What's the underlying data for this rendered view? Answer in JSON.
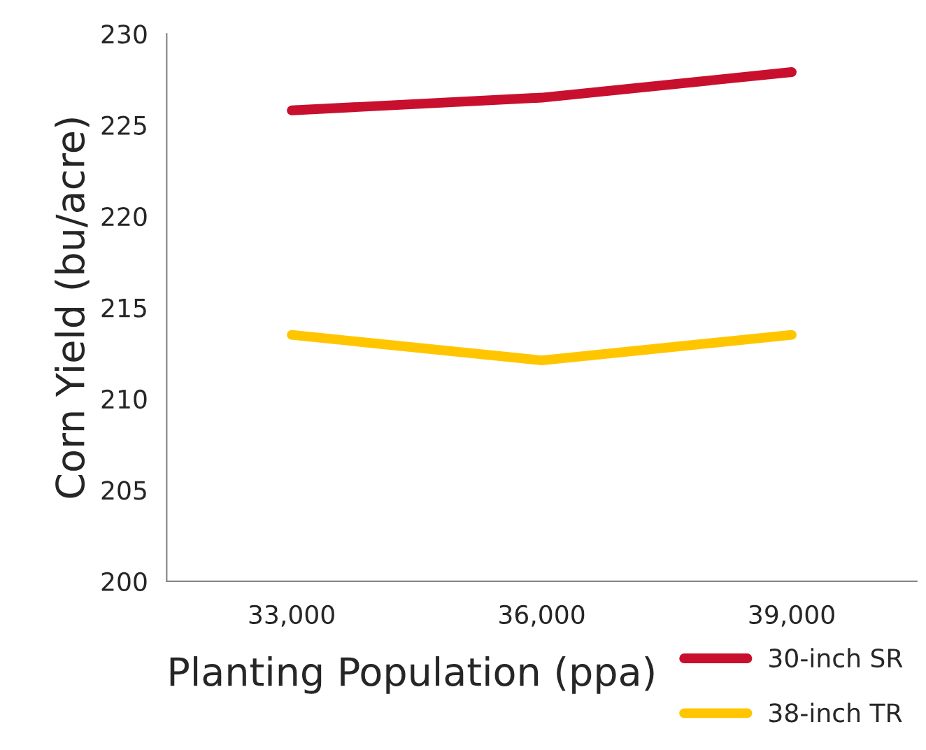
{
  "chart_data": {
    "type": "line",
    "xlabel": "Planting Population (ppa)",
    "ylabel": "Corn Yield (bu/acre)",
    "categories": [
      "33,000",
      "36,000",
      "39,000"
    ],
    "series": [
      {
        "name": "30-inch SR",
        "color": "#c8102e",
        "values": [
          225.8,
          226.5,
          227.9
        ]
      },
      {
        "name": "38-inch TR",
        "color": "#ffc600",
        "values": [
          213.5,
          212.1,
          213.5
        ]
      }
    ],
    "ylim": [
      200,
      230
    ],
    "yticks": [
      200,
      205,
      210,
      215,
      220,
      225,
      230
    ],
    "grid": false,
    "legend": "bottom right",
    "marker": "none",
    "line_style": "solid"
  }
}
